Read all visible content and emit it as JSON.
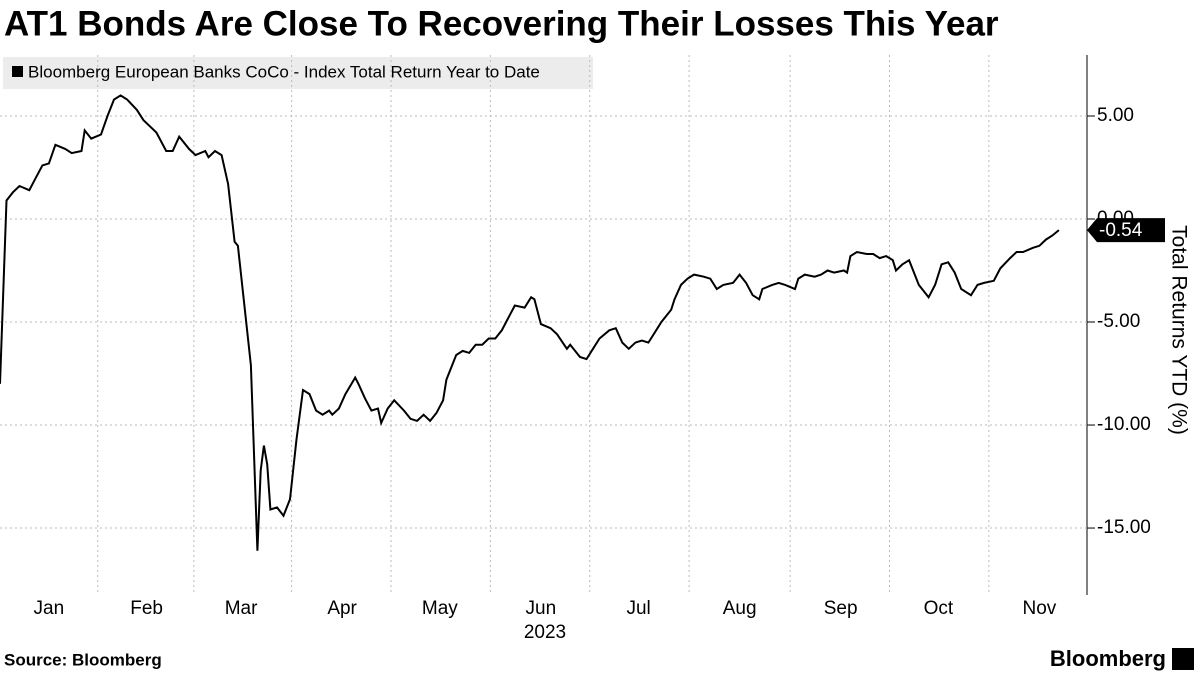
{
  "chart_data": {
    "type": "line",
    "title": "AT1 Bonds Are Close To Recovering Their Losses This Year",
    "ylabel": "Total Returns YTD (%)",
    "xlabel": "2023",
    "source": "Source: Bloomberg",
    "brand": "Bloomberg",
    "series": [
      {
        "name": "Bloomberg European Banks CoCo - Index Total Return Year to Date",
        "color": "#000000",
        "x": [
          0,
          2,
          4,
          6,
          9,
          11,
          13,
          15,
          17,
          20,
          22,
          25,
          26,
          28,
          31,
          33,
          35,
          37,
          39,
          42,
          44,
          46,
          48,
          51,
          53,
          55,
          58,
          60,
          63,
          64,
          66,
          68,
          70,
          72,
          73,
          75,
          77,
          79,
          80,
          81,
          82,
          83,
          85,
          87,
          89,
          91,
          93,
          95,
          97,
          99,
          101,
          102,
          104,
          106,
          109,
          110,
          112,
          114,
          116,
          117,
          119,
          121,
          124,
          126,
          128,
          130,
          132,
          134,
          136,
          137,
          140,
          142,
          144,
          146,
          148,
          150,
          152,
          154,
          156,
          158,
          161,
          163,
          164,
          166,
          169,
          171,
          174,
          175,
          178,
          180,
          182,
          184,
          187,
          189,
          191,
          193,
          195,
          197,
          199,
          201,
          203,
          206,
          207,
          209,
          211,
          213,
          216,
          218,
          220,
          222,
          225,
          227,
          229,
          231,
          233,
          234,
          237,
          239,
          241,
          244,
          245,
          247,
          250,
          252,
          254,
          256,
          259,
          260,
          261,
          263,
          266,
          268,
          270,
          272,
          274,
          275,
          277,
          279,
          280,
          282,
          285,
          287,
          289,
          291,
          293,
          295,
          298,
          300,
          302,
          305,
          307,
          310,
          312,
          314,
          317,
          319,
          321,
          323,
          325
        ],
        "values": [
          -8.0,
          0.9,
          1.3,
          1.6,
          1.4,
          2.0,
          2.6,
          2.7,
          3.6,
          3.4,
          3.2,
          3.3,
          4.3,
          3.9,
          4.1,
          5.0,
          5.8,
          6.0,
          5.8,
          5.3,
          4.8,
          4.5,
          4.2,
          3.3,
          3.3,
          4.0,
          3.4,
          3.1,
          3.3,
          3.0,
          3.3,
          3.1,
          1.7,
          -1.1,
          -1.3,
          -4.2,
          -7.1,
          -16.1,
          -12.2,
          -11.0,
          -11.9,
          -14.1,
          -14.0,
          -14.4,
          -13.6,
          -10.7,
          -8.3,
          -8.5,
          -9.3,
          -9.5,
          -9.3,
          -9.5,
          -9.2,
          -8.5,
          -7.7,
          -8.0,
          -8.7,
          -9.3,
          -9.2,
          -9.9,
          -9.2,
          -8.8,
          -9.3,
          -9.7,
          -9.8,
          -9.5,
          -9.8,
          -9.4,
          -8.8,
          -7.8,
          -6.6,
          -6.4,
          -6.5,
          -6.1,
          -6.1,
          -5.8,
          -5.8,
          -5.4,
          -4.8,
          -4.2,
          -4.3,
          -3.8,
          -3.9,
          -5.1,
          -5.3,
          -5.6,
          -6.3,
          -6.1,
          -6.7,
          -6.8,
          -6.3,
          -5.8,
          -5.4,
          -5.3,
          -6.0,
          -6.3,
          -6.0,
          -5.9,
          -6.0,
          -5.5,
          -5.0,
          -4.4,
          -3.9,
          -3.2,
          -2.9,
          -2.7,
          -2.8,
          -2.9,
          -3.4,
          -3.2,
          -3.1,
          -2.7,
          -3.1,
          -3.7,
          -3.9,
          -3.4,
          -3.2,
          -3.1,
          -3.2,
          -3.4,
          -2.9,
          -2.7,
          -2.8,
          -2.7,
          -2.5,
          -2.6,
          -2.5,
          -2.6,
          -1.8,
          -1.6,
          -1.7,
          -1.7,
          -1.9,
          -1.8,
          -2.0,
          -2.5,
          -2.2,
          -2.0,
          -2.4,
          -3.2,
          -3.8,
          -3.2,
          -2.2,
          -2.1,
          -2.6,
          -3.4,
          -3.7,
          -3.2,
          -3.1,
          -3.0,
          -2.4,
          -1.9,
          -1.6,
          -1.6,
          -1.4,
          -1.3,
          -1.0,
          -0.8,
          -0.54
        ]
      }
    ],
    "annotation": {
      "value": -0.54,
      "label": "-0.54"
    },
    "xlim": [
      0,
      333
    ],
    "xticks": [
      {
        "value": 15,
        "label": "Jan"
      },
      {
        "value": 45,
        "label": "Feb"
      },
      {
        "value": 74,
        "label": "Mar"
      },
      {
        "value": 105,
        "label": "Apr"
      },
      {
        "value": 135,
        "label": "May"
      },
      {
        "value": 166,
        "label": "Jun"
      },
      {
        "value": 196,
        "label": "Jul"
      },
      {
        "value": 227,
        "label": "Aug"
      },
      {
        "value": 258,
        "label": "Sep"
      },
      {
        "value": 288,
        "label": "Oct"
      },
      {
        "value": 319,
        "label": "Nov"
      }
    ],
    "ylim": [
      -18.25,
      7.96
    ],
    "yticks": [
      {
        "value": 5,
        "label": "5.00"
      },
      {
        "value": 0,
        "label": "0.00"
      },
      {
        "value": -5,
        "label": "-5.00"
      },
      {
        "value": -10,
        "label": "-10.00"
      },
      {
        "value": -15,
        "label": "-15.00"
      }
    ],
    "grid": true
  }
}
